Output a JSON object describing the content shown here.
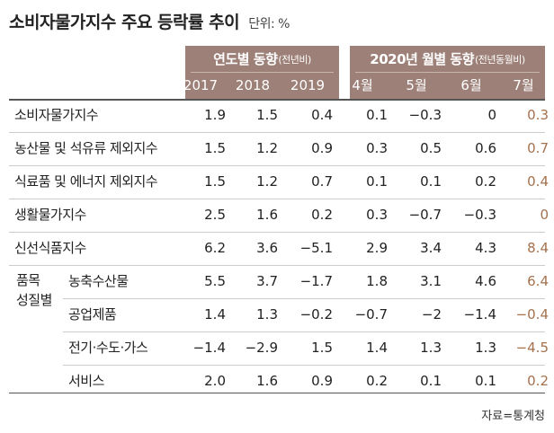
{
  "title": "소비자물가지수 주요 등락률 추이",
  "unit": "단위: %",
  "chart_data": {
    "type": "table",
    "header_groups": [
      {
        "label": "연도별 동향",
        "sub": "(전년비)"
      },
      {
        "label": "2020년 월별 동향",
        "sub": "(전년동월비)"
      }
    ],
    "columns": [
      "2017",
      "2018",
      "2019",
      "4월",
      "5월",
      "6월",
      "7월"
    ],
    "rows": [
      {
        "label": "소비자물가지수",
        "values": [
          "1.9",
          "1.5",
          "0.4",
          "0.1",
          "−0.3",
          "0",
          "0.3"
        ]
      },
      {
        "label": "농산물 및 석유류 제외지수",
        "values": [
          "1.5",
          "1.2",
          "0.9",
          "0.3",
          "0.5",
          "0.6",
          "0.7"
        ]
      },
      {
        "label": "식료품 및 에너지 제외지수",
        "values": [
          "1.5",
          "1.2",
          "0.7",
          "0.1",
          "0.1",
          "0.2",
          "0.4"
        ]
      },
      {
        "label": "생활물가지수",
        "values": [
          "2.5",
          "1.6",
          "0.2",
          "0.3",
          "−0.7",
          "−0.3",
          "0"
        ]
      },
      {
        "label": "신선식품지수",
        "values": [
          "6.2",
          "3.6",
          "−5.1",
          "2.9",
          "3.4",
          "4.3",
          "8.4"
        ]
      }
    ],
    "group": {
      "label_line1": "품목",
      "label_line2": "성질별",
      "rows": [
        {
          "label": "농축수산물",
          "values": [
            "5.5",
            "3.7",
            "−1.7",
            "1.8",
            "3.1",
            "4.6",
            "6.4"
          ]
        },
        {
          "label": "공업제품",
          "values": [
            "1.4",
            "1.3",
            "−0.2",
            "−0.7",
            "−2",
            "−1.4",
            "−0.4"
          ]
        },
        {
          "label": "전기·수도·가스",
          "values": [
            "−1.4",
            "−2.9",
            "1.5",
            "1.4",
            "1.3",
            "1.3",
            "−4.5"
          ]
        },
        {
          "label": "서비스",
          "values": [
            "2.0",
            "1.6",
            "0.9",
            "0.2",
            "0.1",
            "0.1",
            "0.2"
          ]
        }
      ]
    },
    "highlight_color": "#a4714d",
    "header_color": "#9d8179"
  },
  "source": "자료=통계청"
}
